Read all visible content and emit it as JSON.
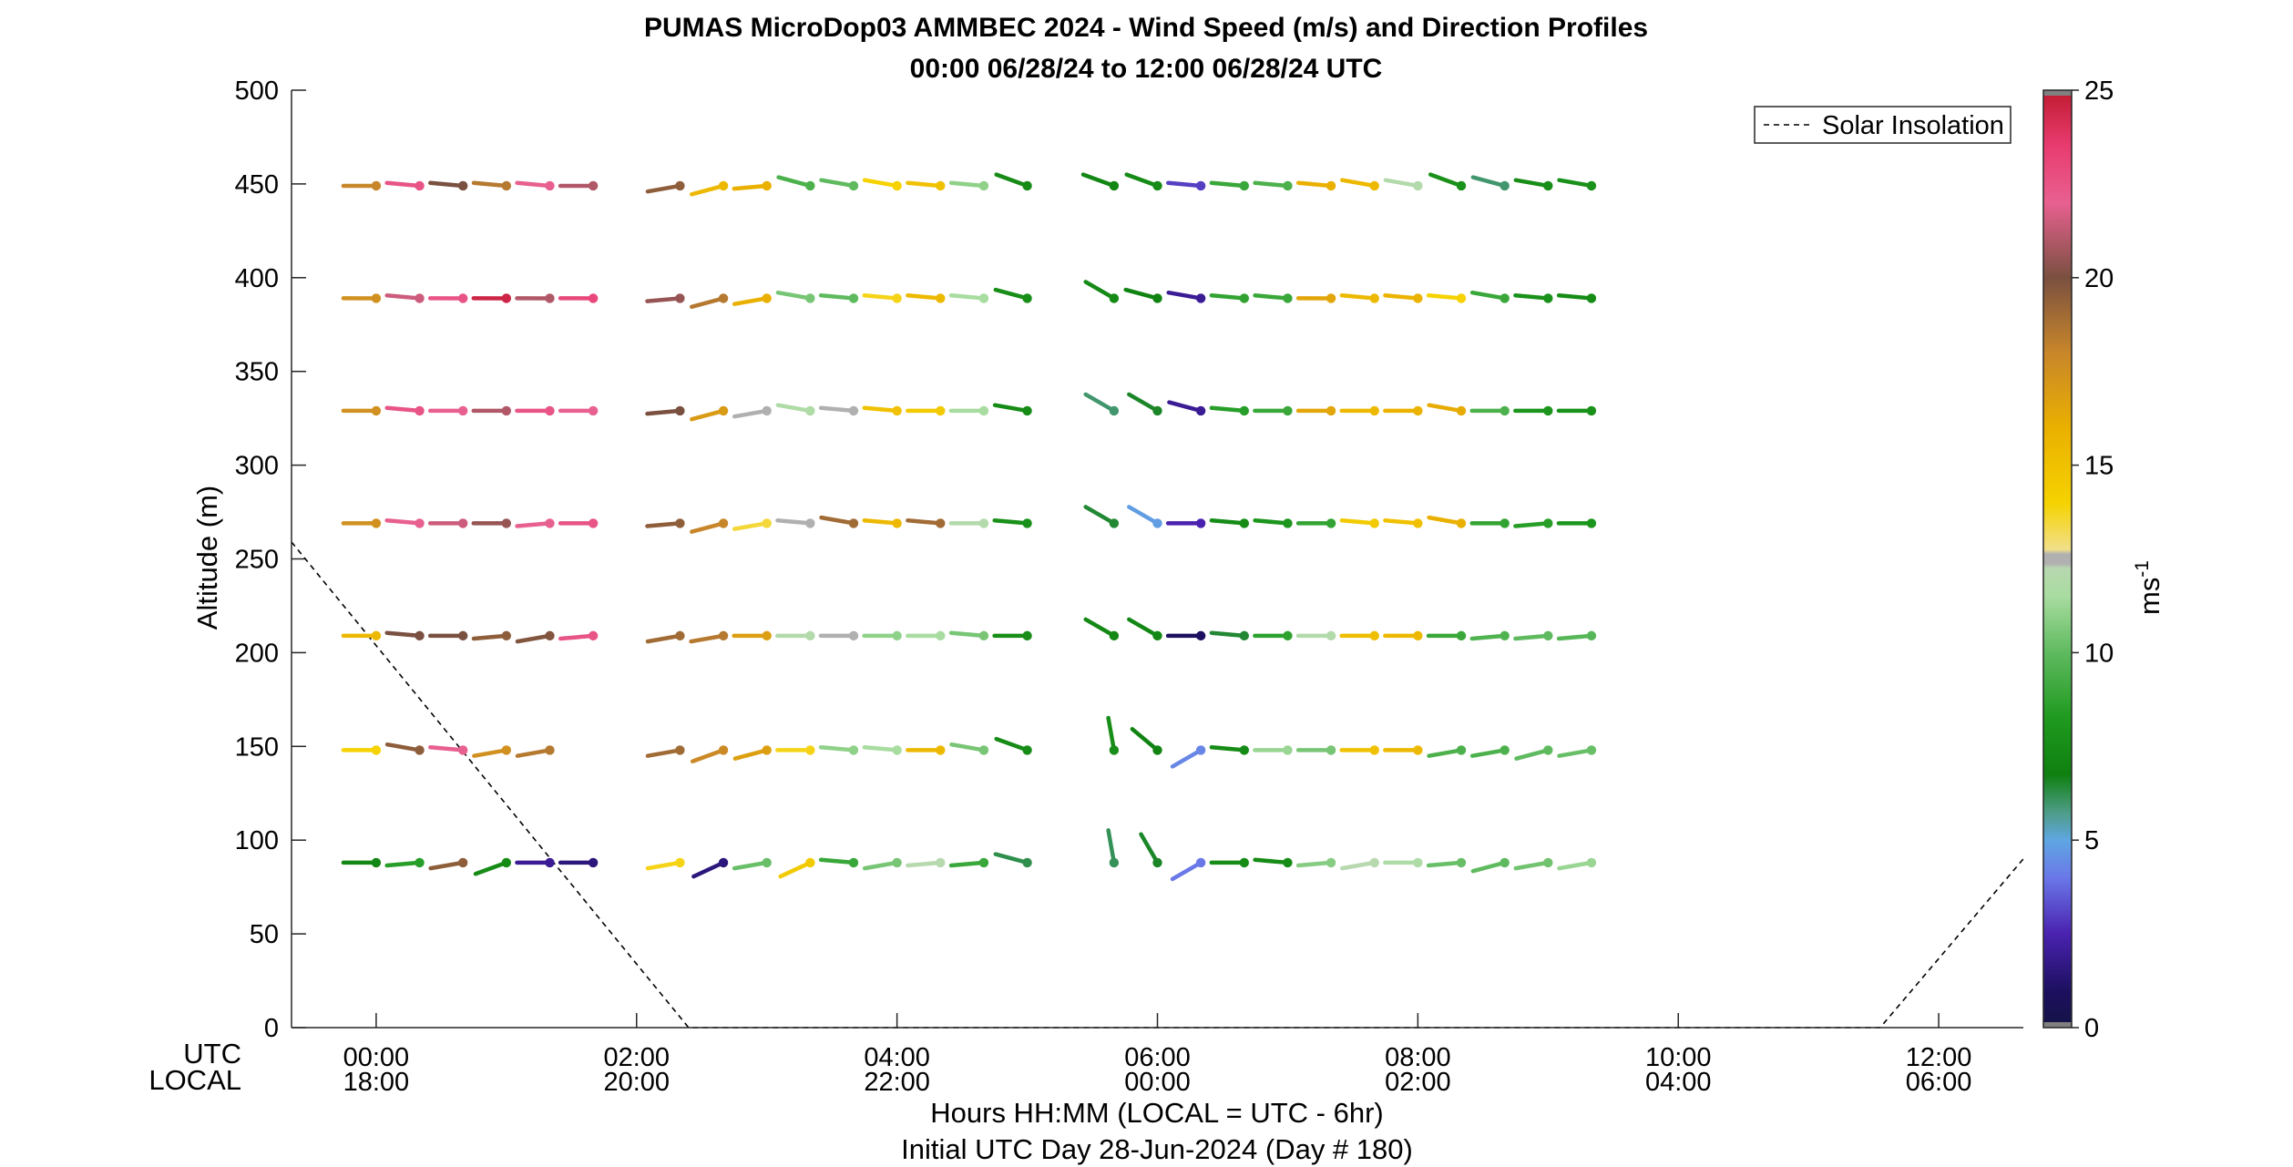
{
  "chart_data": {
    "type": "line",
    "title": "PUMAS MicroDop03 AMMBEC 2024 - Wind Speed (m/s) and Direction Profiles",
    "subtitle": "00:00 06/28/24 to 12:00 06/28/24  UTC",
    "ylabel": "Altitude (m)",
    "ylim": [
      0,
      500
    ],
    "yticks": [
      "0",
      "50",
      "100",
      "150",
      "200",
      "250",
      "300",
      "350",
      "400",
      "450",
      "500"
    ],
    "xlim_hours": [
      -0.65,
      12.65
    ],
    "xticks_utc": [
      "00:00",
      "02:00",
      "04:00",
      "06:00",
      "08:00",
      "10:00",
      "12:00"
    ],
    "xticks_local": [
      "18:00",
      "20:00",
      "22:00",
      "00:00",
      "02:00",
      "04:00",
      "06:00"
    ],
    "row_label_utc": "UTC",
    "row_label_local": "LOCAL",
    "xlabel": "Hours HH:MM  (LOCAL = UTC - 6hr)",
    "xlabel2": "Initial UTC Day 28-Jun-2024 (Day # 180)",
    "legend": {
      "position": "top-right",
      "entries": [
        "Solar Insolation"
      ]
    },
    "colorbar": {
      "label": "ms",
      "label_exp": "-1",
      "ticks": [
        "0",
        "5",
        "10",
        "15",
        "20",
        "25"
      ],
      "range": [
        0,
        25
      ]
    },
    "solar_insolation": {
      "name": "Solar Insolation",
      "x": [
        -0.65,
        2.4,
        11.55,
        12.65
      ],
      "y": [
        259,
        0,
        0,
        90
      ]
    },
    "altitudes": [
      88,
      148,
      209,
      269,
      329,
      389,
      449
    ],
    "times": [
      0,
      0.3333,
      0.6667,
      1.0,
      1.3333,
      1.6667,
      2.3333,
      2.6667,
      3.0,
      3.3333,
      3.6667,
      4.0,
      4.3333,
      4.6667,
      5.0,
      5.6667,
      6.0,
      6.3333,
      6.6667,
      7.0,
      7.3333,
      7.6667,
      8.0,
      8.3333,
      8.6667,
      9.0,
      9.3333
    ],
    "speed": [
      [
        7.2,
        8.5,
        19.5,
        7.5,
        2.0,
        1.5,
        13.8,
        1.5,
        10.2,
        14.5,
        9.0,
        10.5,
        12.2,
        9.0,
        6.3,
        6.2,
        6.6,
        4.0,
        7.5,
        7.5,
        10.8,
        12.3,
        11.8,
        10.2,
        10.0,
        10.4,
        11.2
      ],
      [
        14.0,
        19.5,
        22.0,
        17.5,
        18.5,
        null,
        19.0,
        17.8,
        16.8,
        13.8,
        11.0,
        11.5,
        15.5,
        10.5,
        7.5,
        7.6,
        7.0,
        4.3,
        7.5,
        11.2,
        10.5,
        15.0,
        15.5,
        9.5,
        9.5,
        10.0,
        10.2
      ],
      [
        15.5,
        20.0,
        20.0,
        19.5,
        19.8,
        22.5,
        19.0,
        18.5,
        16.8,
        12.0,
        12.5,
        11.0,
        11.5,
        10.5,
        7.6,
        7.3,
        7.2,
        1.0,
        6.5,
        8.7,
        12.0,
        15.2,
        15.5,
        9.0,
        9.6,
        10.0,
        9.8
      ],
      [
        17.5,
        22.0,
        21.5,
        20.5,
        22.0,
        22.5,
        19.5,
        18.0,
        13.5,
        12.5,
        19.0,
        15.5,
        19.0,
        12.0,
        7.7,
        6.5,
        4.8,
        2.5,
        7.5,
        8.0,
        8.8,
        14.5,
        15.0,
        16.0,
        8.8,
        8.5,
        8.0
      ],
      [
        17.5,
        22.5,
        22.0,
        21.0,
        22.5,
        22.0,
        20.0,
        17.0,
        12.5,
        11.8,
        12.5,
        15.0,
        14.5,
        11.5,
        7.5,
        6.0,
        6.6,
        2.0,
        8.5,
        9.0,
        16.5,
        15.5,
        15.8,
        16.2,
        9.5,
        8.0,
        7.8
      ],
      [
        17.5,
        21.5,
        22.5,
        24.5,
        21.0,
        23.0,
        20.5,
        18.5,
        16.0,
        10.5,
        10.0,
        13.8,
        15.5,
        11.5,
        7.6,
        7.4,
        7.0,
        2.0,
        8.8,
        9.0,
        16.5,
        15.5,
        15.8,
        14.0,
        9.0,
        7.8,
        7.5
      ],
      [
        18.0,
        22.5,
        20.0,
        18.5,
        22.0,
        21.0,
        19.5,
        15.5,
        16.0,
        9.5,
        10.0,
        14.0,
        15.0,
        11.0,
        7.5,
        7.2,
        7.5,
        3.0,
        9.0,
        9.5,
        16.0,
        15.5,
        12.0,
        7.8,
        6.0,
        7.6,
        7.8
      ]
    ],
    "direction_deg": [
      [
        270,
        265,
        260,
        250,
        270,
        270,
        260,
        245,
        260,
        245,
        275,
        260,
        265,
        265,
        285,
        350,
        330,
        240,
        270,
        275,
        265,
        260,
        270,
        265,
        255,
        260,
        260
      ],
      [
        270,
        280,
        275,
        260,
        260,
        null,
        260,
        250,
        255,
        270,
        275,
        275,
        270,
        280,
        290,
        350,
        310,
        240,
        275,
        270,
        270,
        270,
        270,
        260,
        260,
        255,
        260
      ],
      [
        270,
        275,
        270,
        265,
        260,
        265,
        260,
        260,
        270,
        270,
        270,
        270,
        270,
        275,
        270,
        300,
        300,
        270,
        275,
        270,
        270,
        270,
        270,
        270,
        265,
        265,
        265
      ],
      [
        270,
        275,
        270,
        270,
        265,
        270,
        265,
        255,
        260,
        275,
        280,
        275,
        275,
        270,
        275,
        300,
        300,
        270,
        275,
        275,
        270,
        275,
        275,
        280,
        270,
        265,
        270
      ],
      [
        270,
        275,
        270,
        270,
        270,
        270,
        265,
        255,
        260,
        280,
        275,
        275,
        270,
        270,
        280,
        300,
        300,
        285,
        275,
        270,
        270,
        270,
        270,
        280,
        270,
        270,
        270
      ],
      [
        270,
        275,
        270,
        270,
        270,
        270,
        265,
        255,
        260,
        280,
        275,
        275,
        275,
        275,
        285,
        300,
        285,
        280,
        275,
        275,
        270,
        275,
        275,
        275,
        280,
        275,
        275
      ],
      [
        270,
        275,
        275,
        275,
        275,
        270,
        260,
        255,
        265,
        285,
        280,
        280,
        275,
        275,
        290,
        290,
        290,
        275,
        275,
        275,
        275,
        280,
        280,
        290,
        285,
        280,
        280
      ]
    ]
  }
}
